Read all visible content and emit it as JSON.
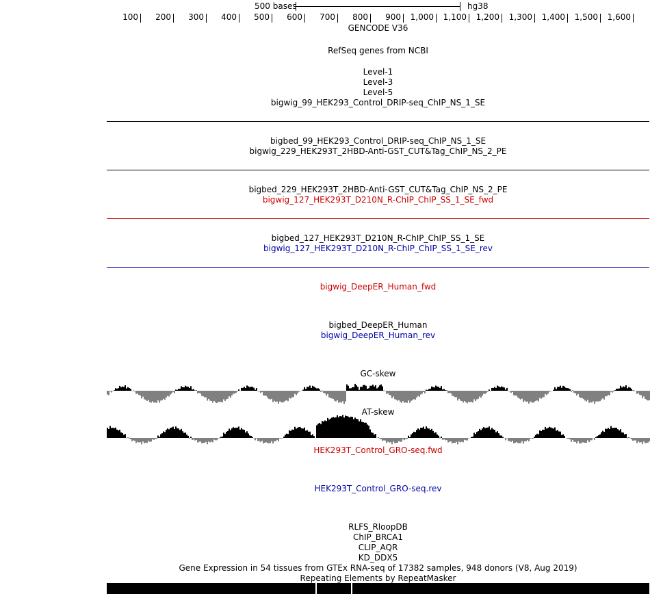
{
  "scale": {
    "label": "500 bases",
    "assembly": "hg38"
  },
  "ruler": {
    "ticks": [
      "100",
      "200",
      "300",
      "400",
      "500",
      "600",
      "700",
      "800",
      "900",
      "1,000",
      "1,100",
      "1,200",
      "1,300",
      "1,400",
      "1,500",
      "1,600"
    ]
  },
  "tracks": [
    {
      "label": "GENCODE V36",
      "color": "black"
    },
    {
      "label": "RefSeq genes from NCBI",
      "color": "black"
    },
    {
      "label": "Level-1",
      "color": "black"
    },
    {
      "label": "Level-3",
      "color": "black"
    },
    {
      "label": "Level-5",
      "color": "black"
    },
    {
      "label": "bigwig_99_HEK293_Control_DRIP-seq_ChIP_NS_1_SE",
      "color": "black"
    },
    {
      "label": "bigbed_99_HEK293_Control_DRIP-seq_ChIP_NS_1_SE",
      "color": "black"
    },
    {
      "label": "bigwig_229_HEK293T_2HBD-Anti-GST_CUT&Tag_ChIP_NS_2_PE",
      "color": "black"
    },
    {
      "label": "bigbed_229_HEK293T_2HBD-Anti-GST_CUT&Tag_ChIP_NS_2_PE",
      "color": "black"
    },
    {
      "label": "bigwig_127_HEK293T_D210N_R-ChIP_ChIP_SS_1_SE_fwd",
      "color": "red"
    },
    {
      "label": "bigbed_127_HEK293T_D210N_R-ChIP_ChIP_SS_1_SE",
      "color": "black"
    },
    {
      "label": "bigwig_127_HEK293T_D210N_R-ChIP_ChIP_SS_1_SE_rev",
      "color": "blue"
    },
    {
      "label": "bigwig_DeepER_Human_fwd",
      "color": "red"
    },
    {
      "label": "bigbed_DeepER_Human",
      "color": "black"
    },
    {
      "label": "bigwig_DeepER_Human_rev",
      "color": "blue"
    },
    {
      "label": "GC-skew",
      "color": "black"
    },
    {
      "label": "AT-skew",
      "color": "black"
    },
    {
      "label": "HEK293T_Control_GRO-seq.fwd",
      "color": "red"
    },
    {
      "label": "HEK293T_Control_GRO-seq.rev",
      "color": "blue"
    },
    {
      "label": "RLFS_RloopDB",
      "color": "black"
    },
    {
      "label": "ChIP_BRCA1",
      "color": "black"
    },
    {
      "label": "CLIP_AQR",
      "color": "black"
    },
    {
      "label": "KD_DDX5",
      "color": "black"
    },
    {
      "label": "Gene Expression in 54 tissues from GTEx RNA-seq of 17382 samples, 948 donors (V8, Aug 2019)",
      "color": "black"
    },
    {
      "label": "Repeating Elements by RepeatMasker",
      "color": "black"
    }
  ],
  "colors": {
    "red": "#cc0000",
    "blue": "#0000aa",
    "black": "#000000",
    "grey": "#808080"
  }
}
